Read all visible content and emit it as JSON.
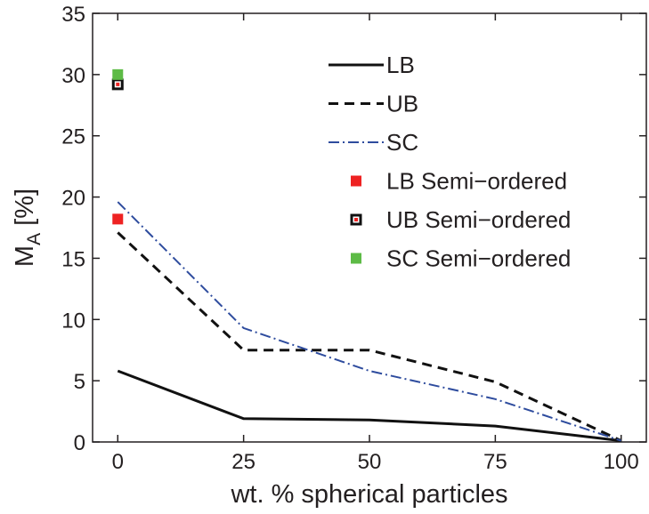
{
  "chart_data": {
    "type": "line",
    "xlabel": "wt. % spherical particles",
    "ylabel": "M",
    "ylabel_sub": "A",
    "ylabel_unit": " [%]",
    "xlim": [
      -5,
      105
    ],
    "ylim": [
      0,
      35
    ],
    "xticks": [
      0,
      25,
      50,
      75,
      100
    ],
    "yticks": [
      0,
      5,
      10,
      15,
      20,
      25,
      30,
      35
    ],
    "grid": false,
    "legend_position": "top-right",
    "x": [
      0,
      25,
      50,
      75,
      100
    ],
    "series": [
      {
        "name": "LB",
        "style": "solid",
        "color": "#111111",
        "values": [
          5.8,
          1.9,
          1.8,
          1.3,
          0.1
        ]
      },
      {
        "name": "UB",
        "style": "dashed",
        "color": "#111111",
        "values": [
          17.1,
          7.5,
          7.5,
          4.9,
          0.1
        ]
      },
      {
        "name": "SC",
        "style": "dashdot",
        "color": "#2e4c9e",
        "values": [
          19.6,
          9.3,
          5.8,
          3.5,
          0.1
        ]
      }
    ],
    "points": [
      {
        "name": "LB Semi−ordered",
        "marker": "square",
        "fill": "#ee2222",
        "stroke": "#ee2222",
        "x": 0,
        "y": 18.2
      },
      {
        "name": "UB Semi−ordered",
        "marker": "square-dot",
        "fill": "#ee2222",
        "stroke": "#111111",
        "x": 0,
        "y": 29.2
      },
      {
        "name": "SC Semi−ordered",
        "marker": "square",
        "fill": "#5dbb46",
        "stroke": "#5dbb46",
        "x": 0,
        "y": 30.0
      }
    ]
  }
}
